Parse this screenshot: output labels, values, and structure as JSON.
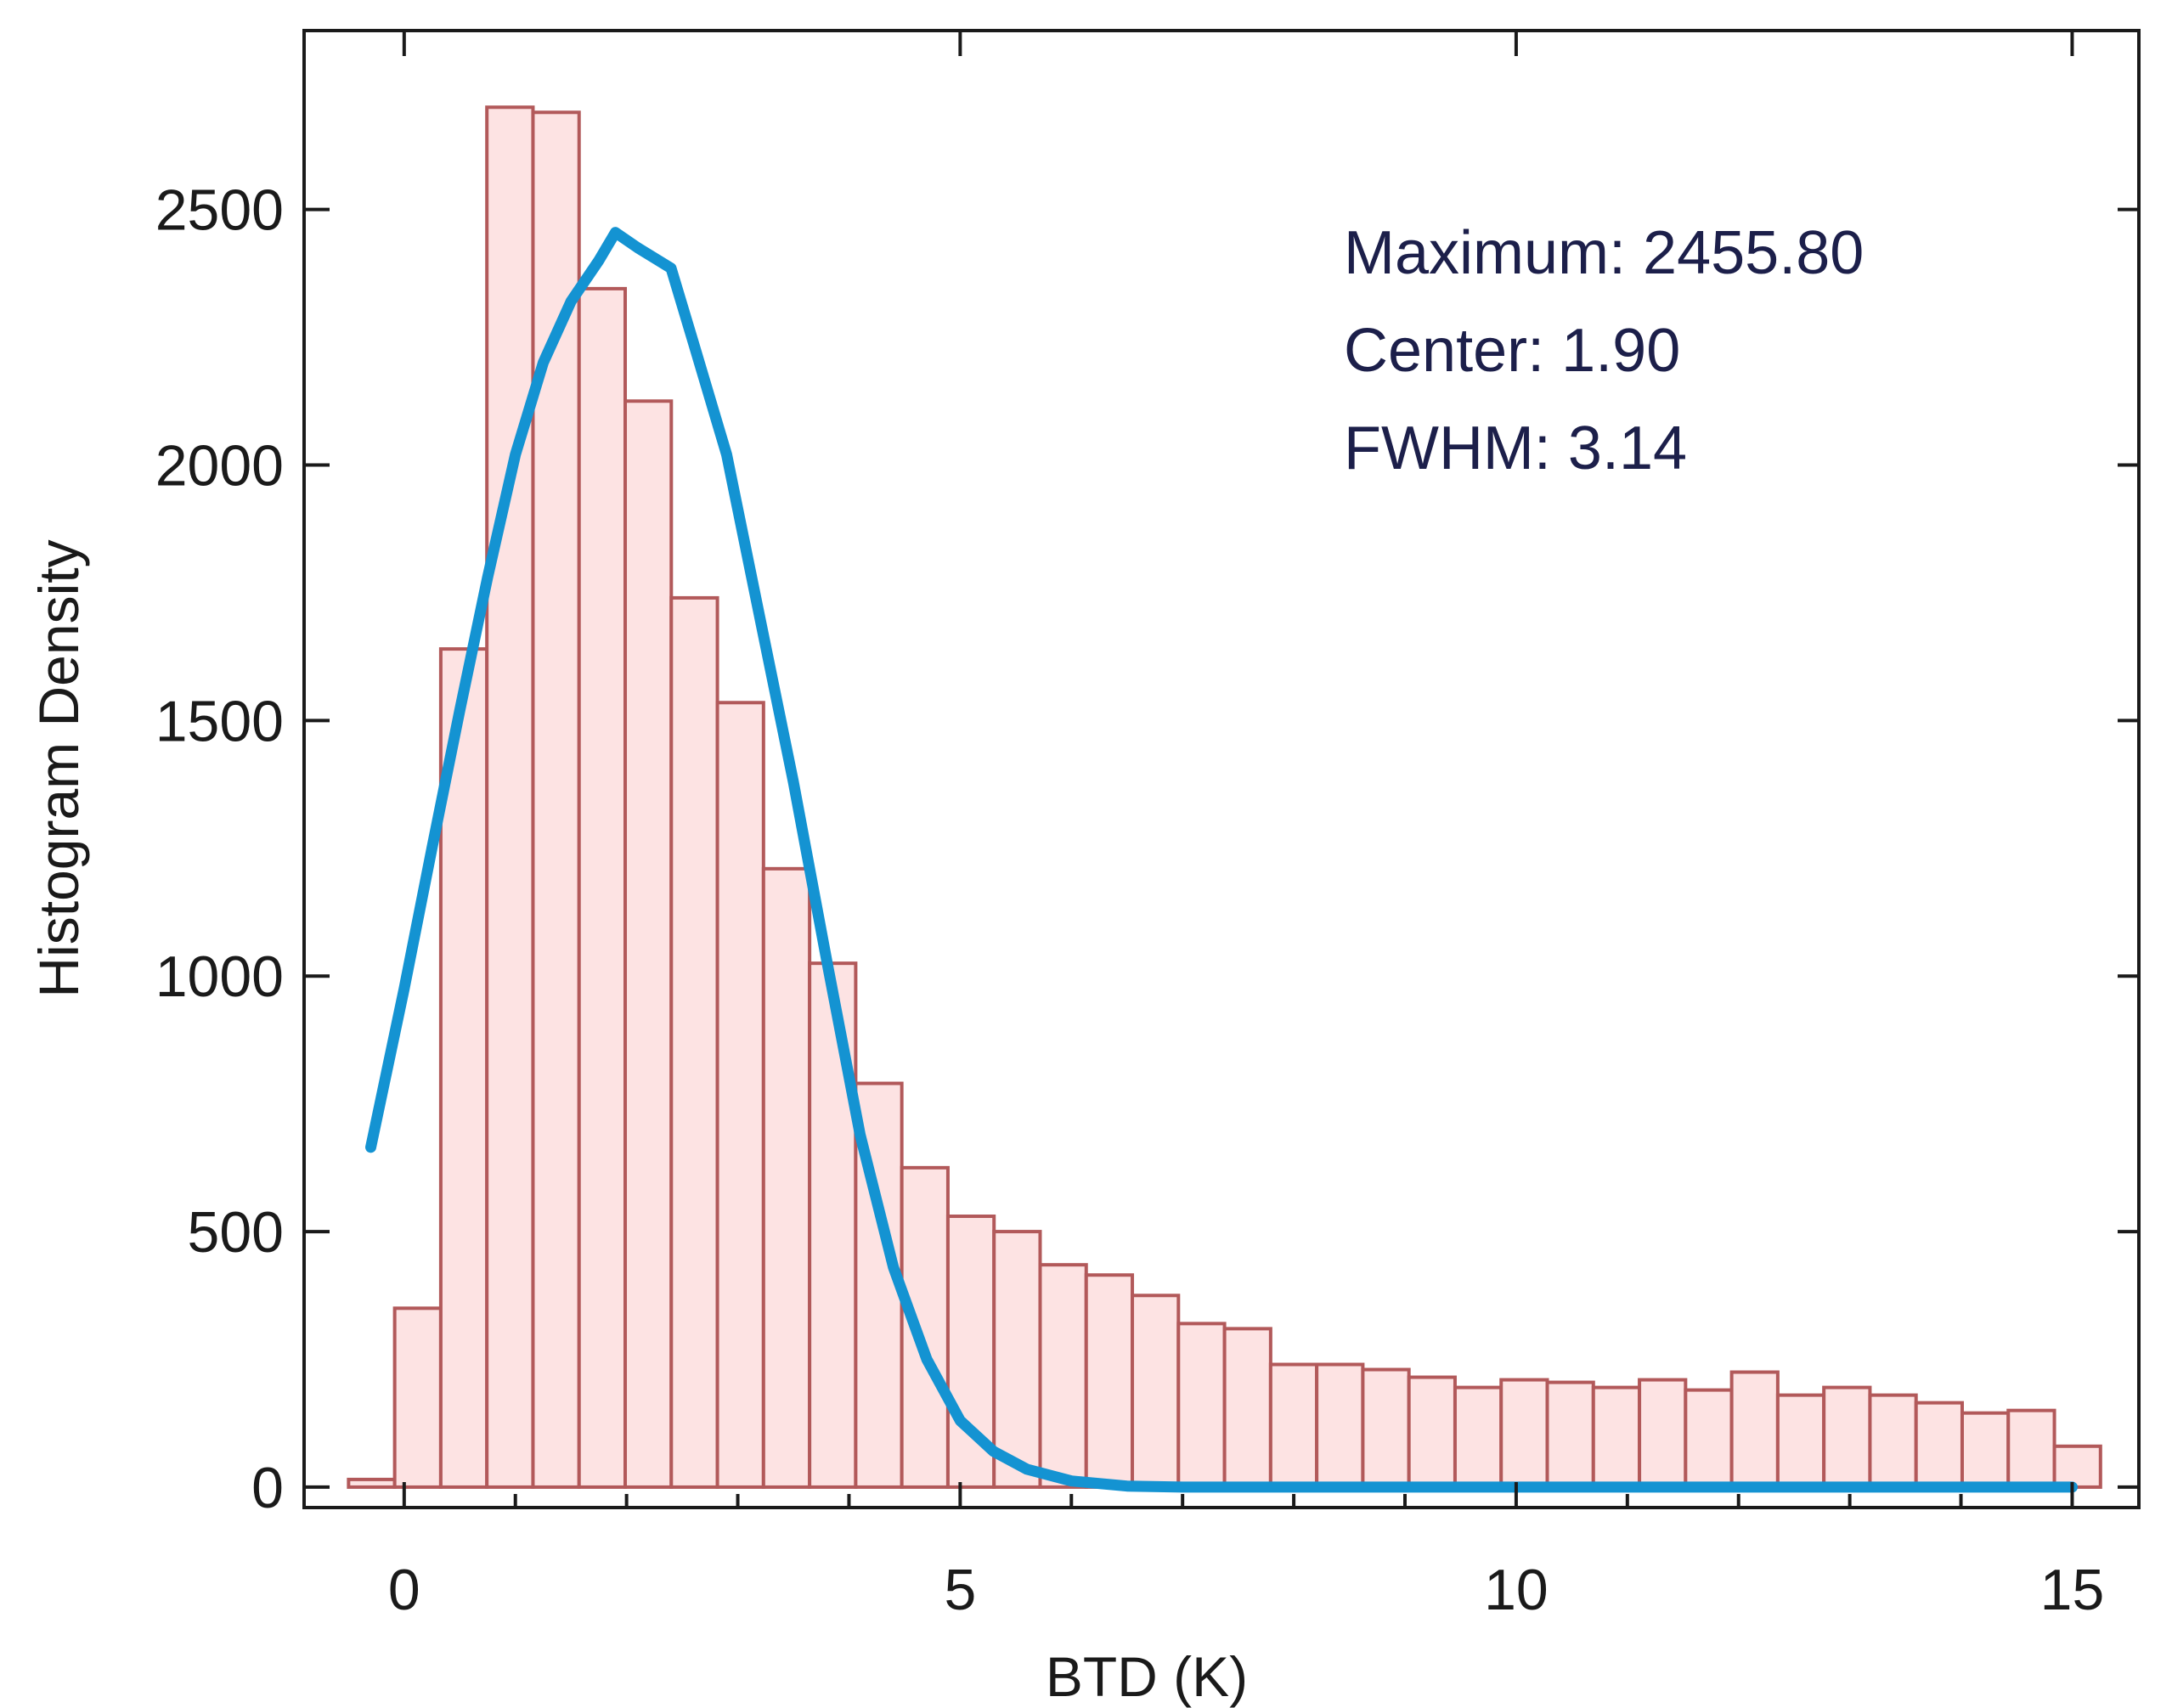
{
  "chart_data": {
    "type": "bar",
    "title": "",
    "xlabel": "BTD (K)",
    "ylabel": "Histogram Density",
    "xlim": [
      -0.9,
      15.6
    ],
    "ylim": [
      -40,
      2850
    ],
    "x_ticks": [
      0,
      5,
      10,
      15
    ],
    "x_minor_ticks": [
      1,
      2,
      3,
      4,
      6,
      7,
      8,
      9,
      11,
      12,
      13,
      14
    ],
    "y_ticks": [
      0,
      500,
      1000,
      1500,
      2000,
      2500
    ],
    "grid": false,
    "legend": null,
    "bin_width": 0.4146,
    "bin_edges": [
      -0.5,
      -0.0854,
      0.3292,
      0.7438,
      1.1584,
      1.573,
      1.9876,
      2.4022,
      2.8168,
      3.2314,
      3.646,
      4.0606,
      4.4752,
      4.8898,
      5.3044,
      5.719,
      6.1336,
      6.5482,
      6.9628,
      7.3774,
      7.792,
      8.2066,
      8.6212,
      9.0358,
      9.4504,
      9.865,
      10.2796,
      10.6942,
      11.1088,
      11.5234,
      11.938,
      12.3526,
      12.7672,
      13.1818,
      13.5964,
      14.011,
      14.4256,
      14.8402,
      15.2548
    ],
    "series": [
      {
        "name": "Histogram Density",
        "type": "bar",
        "values": [
          15,
          350,
          1640,
          2700,
          2690,
          2345,
          2125,
          1740,
          1535,
          1210,
          1025,
          790,
          625,
          530,
          500,
          435,
          415,
          375,
          320,
          310,
          240,
          240,
          230,
          215,
          195,
          210,
          205,
          195,
          210,
          190,
          225,
          180,
          195,
          180,
          165,
          145,
          150,
          80
        ]
      },
      {
        "name": "Gaussian fit",
        "type": "line",
        "x": [
          -0.3,
          0.0,
          0.25,
          0.5,
          0.75,
          1.0,
          1.25,
          1.5,
          1.75,
          1.9,
          2.1,
          2.4,
          2.6,
          2.9,
          3.2,
          3.5,
          3.8,
          4.1,
          4.4,
          4.7,
          5.0,
          5.3,
          5.6,
          6.0,
          6.5,
          7.0,
          8.0,
          10.0,
          12.0,
          15.0
        ],
        "values": [
          665,
          975,
          1250,
          1520,
          1780,
          2020,
          2200,
          2320,
          2400,
          2455,
          2425,
          2385,
          2240,
          2020,
          1700,
          1380,
          1030,
          690,
          430,
          250,
          130,
          70,
          35,
          12,
          2,
          0,
          0,
          0,
          0,
          0
        ]
      }
    ],
    "annotations": [
      "Maximum: 2455.80",
      "Center: 1.90",
      "FWHM: 3.14"
    ],
    "annotation_placement": "top-right"
  }
}
